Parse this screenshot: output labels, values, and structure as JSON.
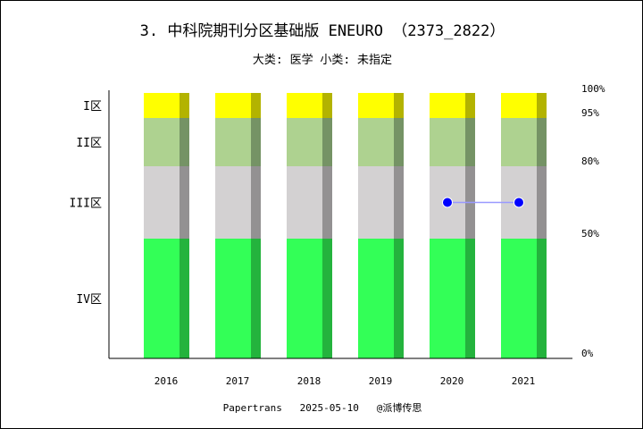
{
  "chart_data": {
    "type": "bar",
    "title": "3. 中科院期刊分区基础版 ENEURO （2373_2822）",
    "subtitle": "大类: 医学 小类: 未指定",
    "categories": [
      "2016",
      "2017",
      "2018",
      "2019",
      "2020",
      "2021"
    ],
    "bands": [
      {
        "label": "IV区",
        "from": 0,
        "to": 50,
        "color": "#33ff57",
        "shade": "#24b33d"
      },
      {
        "label": "III区",
        "from": 50,
        "to": 80,
        "color": "#d3d1d2",
        "shade": "#939192"
      },
      {
        "label": "II区",
        "from": 80,
        "to": 95,
        "color": "#aed290",
        "shade": "#759365"
      },
      {
        "label": "I区",
        "from": 95,
        "to": 100,
        "color": "#ffff00",
        "shade": "#b3b300"
      }
    ],
    "right_ticks": [
      "0%",
      "50%",
      "80%",
      "95%",
      "100%"
    ],
    "series": [
      {
        "x": [
          "2020",
          "2021"
        ],
        "values": [
          65,
          65
        ],
        "color": "#0000ff",
        "line_color": "#9999ff"
      }
    ],
    "ylim": [
      0,
      100
    ],
    "grid": false,
    "footer": "Papertrans   2025-05-10   @派博传思"
  }
}
